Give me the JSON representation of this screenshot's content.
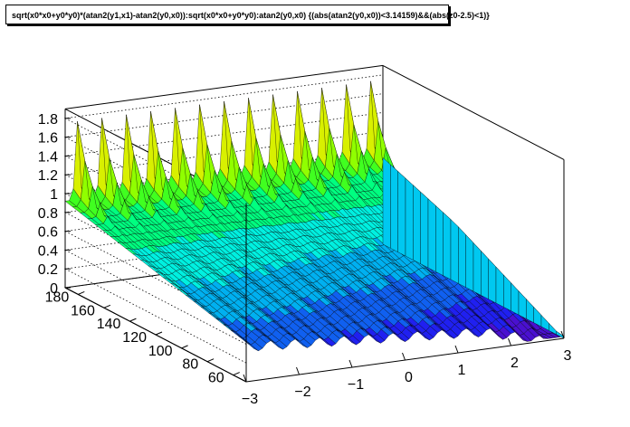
{
  "chart_data": {
    "type": "surface3d",
    "title": "sqrt(x0*x0+y0*y0)*(atan2(y1,x1)-atan2(y0,x0)):sqrt(x0*x0+y0*y0):atan2(y0,x0) {(abs(atan2(y0,x0))<3.14159)&&(abs(z0-2.5)<1)}",
    "x_axis": {
      "range": [
        -3,
        3
      ],
      "ticks": [
        "−3",
        "−2",
        "−1",
        "0",
        "1",
        "2",
        "3"
      ]
    },
    "y_axis": {
      "range": [
        50,
        190
      ],
      "ticks": [
        "60",
        "80",
        "100",
        "120",
        "140",
        "160",
        "180"
      ]
    },
    "z_axis": {
      "range": [
        0,
        1.9
      ],
      "ticks": [
        "0",
        "0.2",
        "0.4",
        "0.6",
        "0.8",
        "1",
        "1.2",
        "1.4",
        "1.6",
        "1.8"
      ]
    },
    "ridges": {
      "count": 13,
      "peak_height": 1.75,
      "front_height": 0.3
    },
    "grid": true,
    "colormap": [
      "#4a10d0",
      "#2020f0",
      "#1060f0",
      "#00b0f0",
      "#00f0e0",
      "#00ff80",
      "#40ff20",
      "#90ff00",
      "#d8f000",
      "#f0c000",
      "#f07000",
      "#d02000",
      "#a00000"
    ]
  }
}
